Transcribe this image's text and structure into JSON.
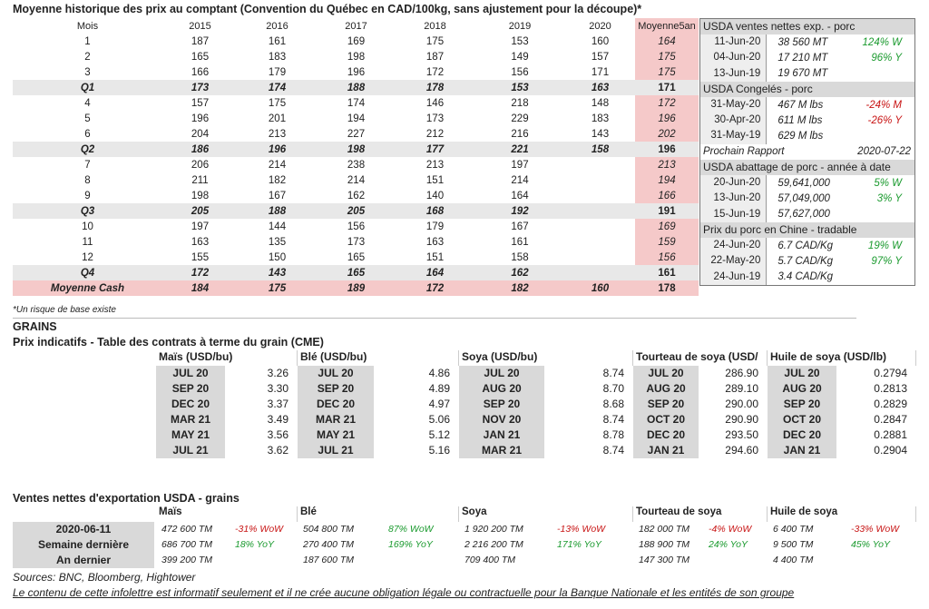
{
  "title": "Moyenne historique des prix au comptant (Convention du Québec en CAD/100kg, sans ajustement pour la découpe)*",
  "price_table": {
    "headers": [
      "Mois",
      "2015",
      "2016",
      "2017",
      "2018",
      "2019",
      "2020",
      "Moyenne5an"
    ],
    "rows": [
      {
        "type": "m",
        "cells": [
          "1",
          "187",
          "161",
          "169",
          "175",
          "153",
          "160",
          "164"
        ]
      },
      {
        "type": "m",
        "cells": [
          "2",
          "165",
          "183",
          "198",
          "187",
          "149",
          "157",
          "175"
        ]
      },
      {
        "type": "m",
        "cells": [
          "3",
          "166",
          "179",
          "196",
          "172",
          "156",
          "171",
          "175"
        ]
      },
      {
        "type": "q",
        "cells": [
          "Q1",
          "173",
          "174",
          "188",
          "178",
          "153",
          "163",
          "171"
        ]
      },
      {
        "type": "m",
        "cells": [
          "4",
          "157",
          "175",
          "174",
          "146",
          "218",
          "148",
          "172"
        ]
      },
      {
        "type": "m",
        "cells": [
          "5",
          "196",
          "201",
          "194",
          "173",
          "229",
          "183",
          "196"
        ]
      },
      {
        "type": "m",
        "cells": [
          "6",
          "204",
          "213",
          "227",
          "212",
          "216",
          "143",
          "202"
        ]
      },
      {
        "type": "q",
        "cells": [
          "Q2",
          "186",
          "196",
          "198",
          "177",
          "221",
          "158",
          "196"
        ]
      },
      {
        "type": "m",
        "cells": [
          "7",
          "206",
          "214",
          "238",
          "213",
          "197",
          "",
          "213"
        ]
      },
      {
        "type": "m",
        "cells": [
          "8",
          "211",
          "182",
          "214",
          "151",
          "214",
          "",
          "194"
        ]
      },
      {
        "type": "m",
        "cells": [
          "9",
          "198",
          "167",
          "162",
          "140",
          "164",
          "",
          "166"
        ]
      },
      {
        "type": "q",
        "cells": [
          "Q3",
          "205",
          "188",
          "205",
          "168",
          "192",
          "",
          "191"
        ]
      },
      {
        "type": "m",
        "cells": [
          "10",
          "197",
          "144",
          "156",
          "179",
          "167",
          "",
          "169"
        ]
      },
      {
        "type": "m",
        "cells": [
          "11",
          "163",
          "135",
          "173",
          "163",
          "161",
          "",
          "159"
        ]
      },
      {
        "type": "m",
        "cells": [
          "12",
          "155",
          "150",
          "165",
          "151",
          "158",
          "",
          "156"
        ]
      },
      {
        "type": "q",
        "cells": [
          "Q4",
          "172",
          "143",
          "165",
          "164",
          "162",
          "",
          "161"
        ]
      },
      {
        "type": "cash",
        "cells": [
          "Moyenne Cash",
          "184",
          "175",
          "189",
          "172",
          "182",
          "160",
          "178"
        ]
      }
    ]
  },
  "footnote": "*Un risque de base existe",
  "side": {
    "s1": {
      "title": "USDA ventes nettes exp. - porc",
      "rows": [
        {
          "d": "11-Jun-20",
          "v": "38 560  MT",
          "c": "124% W",
          "cl": "green"
        },
        {
          "d": "04-Jun-20",
          "v": "17 210  MT",
          "c": "96% Y",
          "cl": "green"
        },
        {
          "d": "13-Jun-19",
          "v": "19 670  MT",
          "c": "",
          "cl": ""
        }
      ]
    },
    "s2": {
      "title": "USDA Congelés - porc",
      "rows": [
        {
          "d": "31-May-20",
          "v": "467 M lbs",
          "c": "-24% M",
          "cl": "red"
        },
        {
          "d": "30-Apr-20",
          "v": "611 M lbs",
          "c": "-26% Y",
          "cl": "red"
        },
        {
          "d": "31-May-19",
          "v": "629 M lbs",
          "c": "",
          "cl": ""
        }
      ]
    },
    "next_label": "Prochain Rapport",
    "next_date": "2020-07-22",
    "s3": {
      "title": "USDA abattage de porc - année à date",
      "rows": [
        {
          "d": "20-Jun-20",
          "v": "59,641,000",
          "c": "5% W",
          "cl": "green"
        },
        {
          "d": "13-Jun-20",
          "v": "57,049,000",
          "c": "3% Y",
          "cl": "green"
        },
        {
          "d": "15-Jun-19",
          "v": "57,627,000",
          "c": "",
          "cl": ""
        }
      ]
    },
    "s4": {
      "title": "Prix du porc en Chine - tradable",
      "rows": [
        {
          "d": "24-Jun-20",
          "v": "6.7 CAD/Kg",
          "c": "19% W",
          "cl": "green"
        },
        {
          "d": "22-May-20",
          "v": "5.7 CAD/Kg",
          "c": "97% Y",
          "cl": "green"
        },
        {
          "d": "24-Jun-19",
          "v": "3.4 CAD/Kg",
          "c": "",
          "cl": ""
        }
      ]
    }
  },
  "grains": {
    "heading": "GRAINS",
    "subheading": "Prix indicatifs - Table des contrats à terme du grain (CME)",
    "columns": [
      {
        "name": "Maïs (USD/bu)",
        "rows": [
          [
            "JUL 20",
            "3.26"
          ],
          [
            "SEP 20",
            "3.30"
          ],
          [
            "DEC 20",
            "3.37"
          ],
          [
            "MAR 21",
            "3.49"
          ],
          [
            "MAY 21",
            "3.56"
          ],
          [
            "JUL 21",
            "3.62"
          ]
        ]
      },
      {
        "name": "Blé (USD/bu)",
        "rows": [
          [
            "JUL 20",
            "4.86"
          ],
          [
            "SEP 20",
            "4.89"
          ],
          [
            "DEC 20",
            "4.97"
          ],
          [
            "MAR 21",
            "5.06"
          ],
          [
            "MAY 21",
            "5.12"
          ],
          [
            "JUL 21",
            "5.16"
          ]
        ]
      },
      {
        "name": "Soya (USD/bu)",
        "rows": [
          [
            "JUL 20",
            "8.74"
          ],
          [
            "AUG 20",
            "8.70"
          ],
          [
            "SEP 20",
            "8.68"
          ],
          [
            "NOV 20",
            "8.74"
          ],
          [
            "JAN 21",
            "8.78"
          ],
          [
            "MAR 21",
            "8.74"
          ]
        ]
      },
      {
        "name": "Tourteau de soya (USD/",
        "rows": [
          [
            "JUL 20",
            "286.90"
          ],
          [
            "AUG 20",
            "289.10"
          ],
          [
            "SEP 20",
            "290.00"
          ],
          [
            "OCT 20",
            "290.90"
          ],
          [
            "DEC 20",
            "293.50"
          ],
          [
            "JAN 21",
            "294.60"
          ]
        ]
      },
      {
        "name": "Huile de soya (USD/lb)",
        "rows": [
          [
            "JUL 20",
            "0.2794"
          ],
          [
            "AUG 20",
            "0.2813"
          ],
          [
            "SEP 20",
            "0.2829"
          ],
          [
            "OCT 20",
            "0.2847"
          ],
          [
            "DEC 20",
            "0.2881"
          ],
          [
            "JAN 21",
            "0.2904"
          ]
        ]
      }
    ]
  },
  "exports": {
    "title": "Ventes nettes d'exportation USDA - grains",
    "labels": [
      "2020-06-11",
      "Semaine dernière",
      "An dernier"
    ],
    "columns": [
      {
        "name": "Maïs",
        "vals": [
          "472 600 TM",
          "686 700 TM",
          "399 200 TM"
        ],
        "chg": [
          [
            "-31% WoW",
            "red"
          ],
          [
            "18% YoY",
            "green"
          ]
        ]
      },
      {
        "name": "Blé",
        "vals": [
          "504 800 TM",
          "270 400 TM",
          "187 600 TM"
        ],
        "chg": [
          [
            "87% WoW",
            "green"
          ],
          [
            "169% YoY",
            "green"
          ]
        ]
      },
      {
        "name": "Soya",
        "vals": [
          "1 920 200 TM",
          "2 216 200 TM",
          "709 400 TM"
        ],
        "chg": [
          [
            "-13% WoW",
            "red"
          ],
          [
            "171% YoY",
            "green"
          ]
        ]
      },
      {
        "name": "Tourteau de soya",
        "vals": [
          "182 000 TM",
          "188 900 TM",
          "147 300 TM"
        ],
        "chg": [
          [
            "-4% WoW",
            "red"
          ],
          [
            "24% YoY",
            "green"
          ]
        ]
      },
      {
        "name": "Huile de soya",
        "vals": [
          "6 400 TM",
          "9 500 TM",
          "4 400 TM"
        ],
        "chg": [
          [
            "-33% WoW",
            "red"
          ],
          [
            "45% YoY",
            "green"
          ]
        ]
      }
    ]
  },
  "sources": "Sources: BNC, Bloomberg, Hightower",
  "disclaimer": "Le contenu de cette infolettre est informatif seulement et il ne crée aucune obligation légale ou contractuelle pour la Banque Nationale et les entités de son groupe"
}
